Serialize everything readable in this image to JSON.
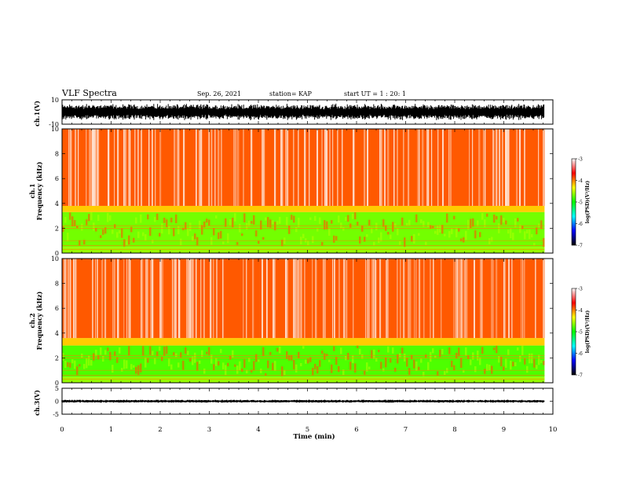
{
  "header": {
    "title": "VLF Spectra",
    "date": "Sep. 26, 2021",
    "station": "station= KAP",
    "start": "start  UT =  1 : 20: 1"
  },
  "chart_data": [
    {
      "type": "line",
      "panel": "ch1-waveform",
      "ylabel": "ch.1(V)",
      "ylim": [
        -10,
        10
      ],
      "y_ticks": [
        "10",
        "-10"
      ],
      "xlim": [
        0,
        10
      ],
      "description_values": {
        "signal_mean": 0,
        "signal_amplitude": 7
      }
    },
    {
      "type": "heatmap",
      "panel": "ch1-spectrogram",
      "ylabel": "ch.1\nFrequency (kHz)",
      "ylim": [
        0,
        10
      ],
      "y_ticks": [
        "0",
        "2",
        "4",
        "6",
        "8",
        "10"
      ],
      "xlim": [
        0,
        10
      ],
      "data_extent_x": [
        0,
        9.83
      ],
      "bands": [
        {
          "freq_range": [
            0,
            0.5
          ],
          "level": -4.6
        },
        {
          "freq_range": [
            0.5,
            3.3
          ],
          "level": -4.7
        },
        {
          "freq_range": [
            3.3,
            3.8
          ],
          "level": -4.2
        },
        {
          "freq_range": [
            3.8,
            10
          ],
          "level": -3.9
        }
      ],
      "colorbar": {
        "label": "log(PSD)(V²/Hz)",
        "min": -7,
        "max": -3,
        "ticks": [
          "-3",
          "-4",
          "-5",
          "-6",
          "-7"
        ],
        "colors": [
          "#ffffff",
          "#ff0000",
          "#ffff00",
          "#00ff00",
          "#00ffff",
          "#0000ff",
          "#000000"
        ]
      }
    },
    {
      "type": "heatmap",
      "panel": "ch2-spectrogram",
      "ylabel": "ch.2\nFrequency (kHz)",
      "ylim": [
        0,
        10
      ],
      "y_ticks": [
        "0",
        "2",
        "4",
        "6",
        "8",
        "10"
      ],
      "xlim": [
        0,
        10
      ],
      "data_extent_x": [
        0,
        9.83
      ],
      "bands": [
        {
          "freq_range": [
            0,
            0.5
          ],
          "level": -4.6
        },
        {
          "freq_range": [
            0.5,
            3.0
          ],
          "level": -4.8
        },
        {
          "freq_range": [
            3.0,
            3.6
          ],
          "level": -4.2
        },
        {
          "freq_range": [
            3.6,
            10
          ],
          "level": -3.9
        }
      ],
      "colorbar": {
        "label": "log(PSD)(V²/Hz)",
        "min": -7,
        "max": -3,
        "ticks": [
          "-3",
          "-4",
          "-5",
          "-6",
          "-7"
        ],
        "colors": [
          "#ffffff",
          "#ff0000",
          "#ffff00",
          "#00ff00",
          "#00ffff",
          "#0000ff",
          "#000000"
        ]
      }
    },
    {
      "type": "line",
      "panel": "ch3-waveform",
      "ylabel": "ch.3(V)",
      "ylim": [
        -5,
        5
      ],
      "y_ticks": [
        "5",
        "0",
        "-5"
      ],
      "xlim": [
        0,
        10
      ],
      "description_values": {
        "signal_mean": 0,
        "signal_amplitude": 0.6
      }
    }
  ],
  "x_axis": {
    "label": "Time  (min)",
    "ticks": [
      "0",
      "1",
      "2",
      "3",
      "4",
      "5",
      "6",
      "7",
      "8",
      "9",
      "10"
    ],
    "min": 0,
    "max": 10
  }
}
